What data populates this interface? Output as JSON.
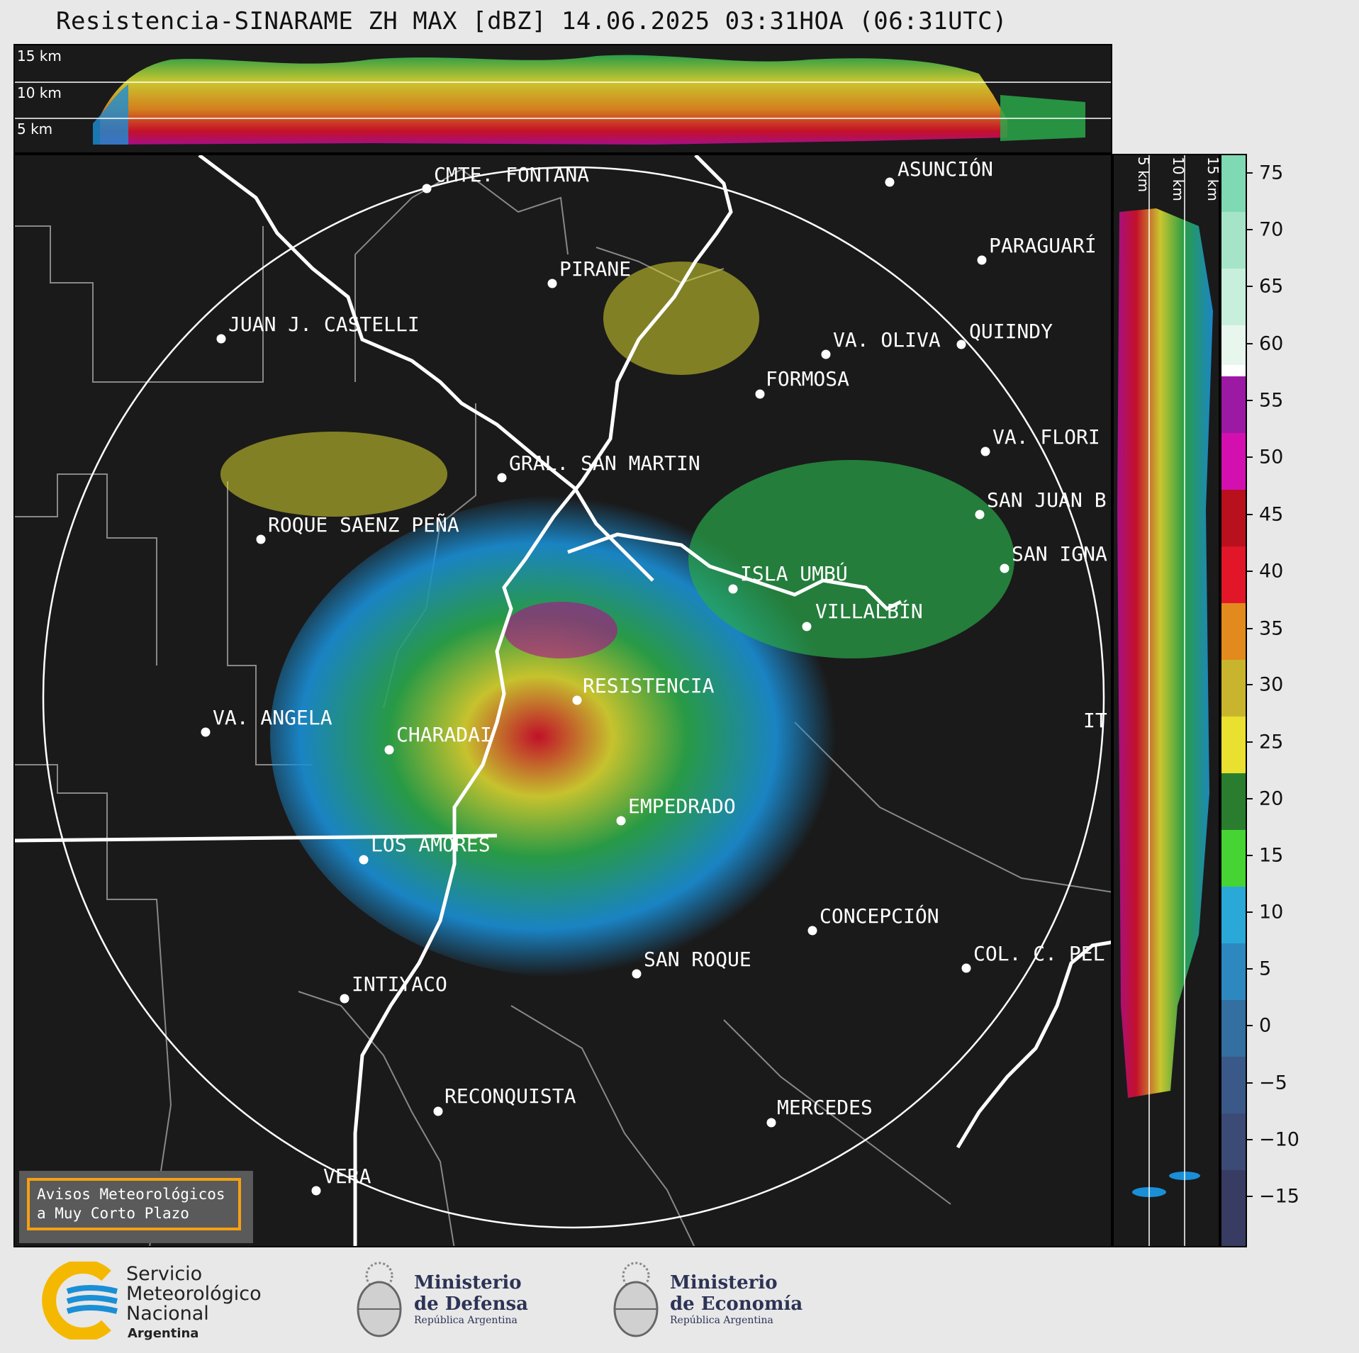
{
  "title": "Resistencia-SINARAME ZH MAX [dBZ] 14.06.2025 03:31HOA (06:31UTC)",
  "top_panel": {
    "height_labels": [
      "15 km",
      "10 km",
      "5 km"
    ]
  },
  "right_panel": {
    "height_labels": [
      "5 km",
      "10 km",
      "15 km"
    ]
  },
  "colorbar": {
    "ticks": [
      "75",
      "70",
      "65",
      "60",
      "55",
      "50",
      "45",
      "40",
      "35",
      "30",
      "25",
      "20",
      "15",
      "10",
      "5",
      "0",
      "−5",
      "−10",
      "−15"
    ]
  },
  "cities": [
    {
      "name": "CMTE. FONTANA"
    },
    {
      "name": "ASUNCIÓN"
    },
    {
      "name": "PARAGUARÍ"
    },
    {
      "name": "PIRANE"
    },
    {
      "name": "JUAN J. CASTELLI"
    },
    {
      "name": "VA. OLIVA"
    },
    {
      "name": "QUIINDY"
    },
    {
      "name": "FORMOSA"
    },
    {
      "name": "VA. FLORI"
    },
    {
      "name": "GRAL. SAN MARTIN"
    },
    {
      "name": "SAN JUAN B"
    },
    {
      "name": "ROQUE SAENZ PEÑA"
    },
    {
      "name": "SAN IGNA"
    },
    {
      "name": "ISLA UMBÚ"
    },
    {
      "name": "VILLALBÍN"
    },
    {
      "name": "RESISTENCIA"
    },
    {
      "name": "VA. ANGELA"
    },
    {
      "name": "CHARADAI"
    },
    {
      "name": "IT"
    },
    {
      "name": "EMPEDRADO"
    },
    {
      "name": "LOS AMORES"
    },
    {
      "name": "CONCEPCIÓN"
    },
    {
      "name": "SAN ROQUE"
    },
    {
      "name": "COL. C. PEL"
    },
    {
      "name": "INTIYACO"
    },
    {
      "name": "RECONQUISTA"
    },
    {
      "name": "MERCEDES"
    },
    {
      "name": "VERA"
    }
  ],
  "warning_box": {
    "line1": "Avisos Meteorológicos",
    "line2": "a Muy Corto Plazo"
  },
  "logos": {
    "smn_line1": "Servicio",
    "smn_line2": "Meteorológico",
    "smn_line3": "Nacional",
    "smn_line4": "Argentina",
    "defensa_line1": "Ministerio",
    "defensa_line2": "de Defensa",
    "defensa_line3": "República Argentina",
    "economia_line1": "Ministerio",
    "economia_line2": "de Economía",
    "economia_line3": "República Argentina"
  },
  "colors": {
    "panel_bg": "#1a1a1a",
    "warning_border": "#f5a011",
    "smn_blue": "#1a8fd6",
    "smn_yellow": "#f5b800"
  }
}
